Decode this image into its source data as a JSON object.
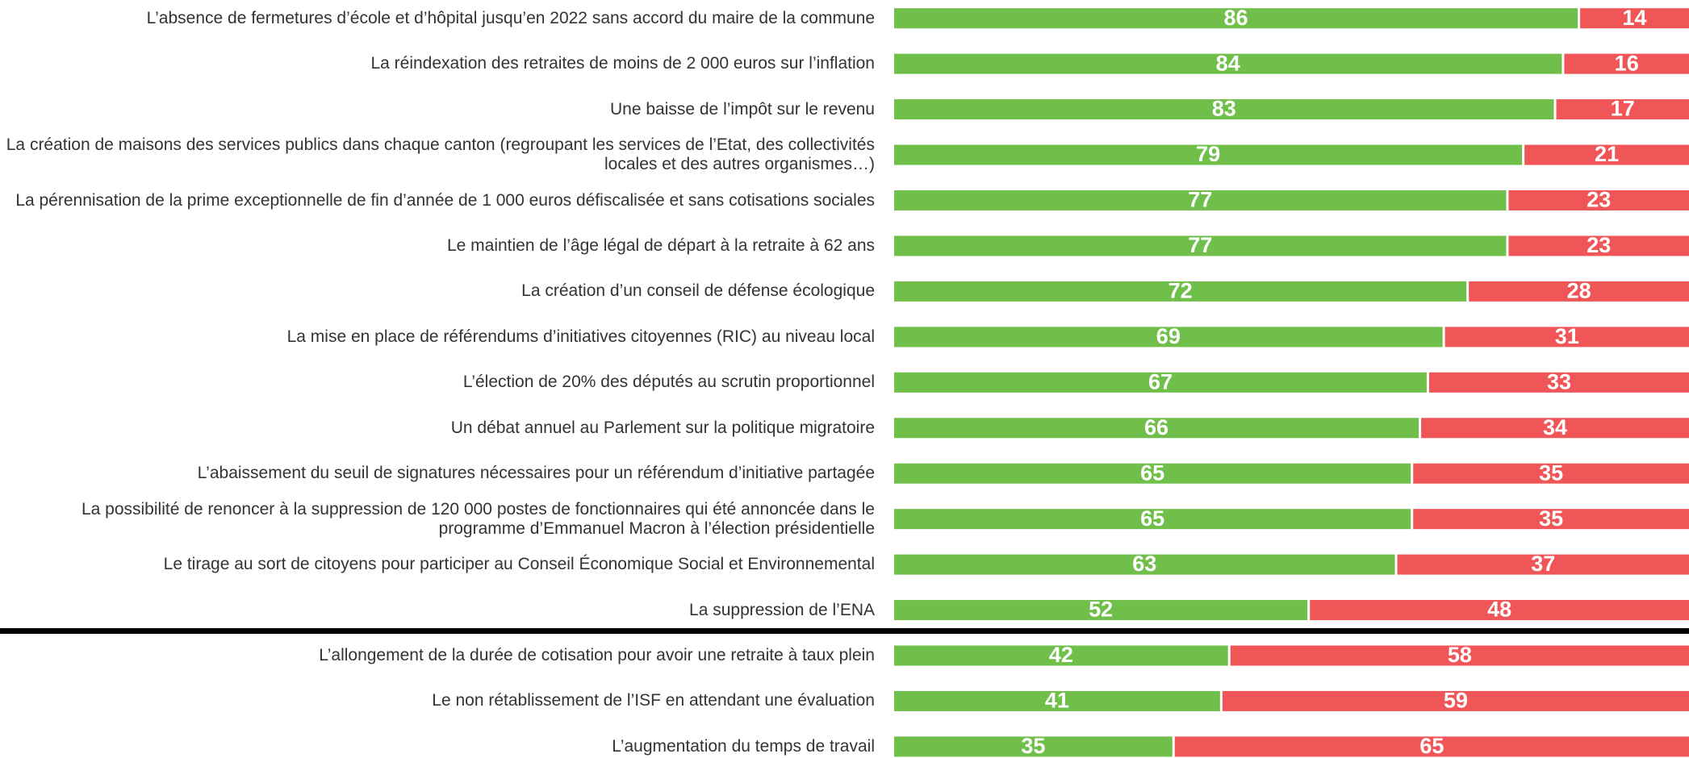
{
  "chart_data": {
    "type": "stacked-bar-horizontal",
    "categories": [
      "L’absence de fermetures d’école et d’hôpital jusqu’en 2022 sans accord du maire de la commune",
      "La réindexation des retraites de moins de 2 000 euros sur l’inflation",
      "Une baisse de l’impôt sur le revenu",
      "La création de maisons des services publics dans chaque canton (regroupant les services de l’Etat, des collectivités locales et des autres organismes…)",
      "La pérennisation de la prime exceptionnelle de fin d’année de 1 000 euros défiscalisée et sans cotisations sociales",
      "Le maintien de l’âge légal de départ à la retraite à 62 ans",
      "La création d’un conseil de défense écologique",
      "La mise en place de référendums d’initiatives citoyennes (RIC) au niveau local",
      "L’élection de 20% des députés au scrutin proportionnel",
      "Un débat annuel au Parlement sur la politique migratoire",
      "L’abaissement du seuil de signatures nécessaires pour un référendum d’initiative partagée",
      "La possibilité de renoncer à la suppression de 120 000 postes de fonctionnaires qui été annoncée dans le programme d’Emmanuel Macron à l’élection présidentielle",
      "Le tirage au sort de citoyens pour participer au Conseil Économique Social et Environnemental",
      "La suppression de l’ENA",
      "L’allongement de la durée de cotisation pour avoir une retraite à taux plein",
      "Le non rétablissement de l’ISF en attendant une évaluation",
      "L’augmentation du temps de travail"
    ],
    "series": [
      {
        "color": "#70bf4a",
        "values": [
          86,
          84,
          83,
          79,
          77,
          77,
          72,
          69,
          67,
          66,
          65,
          65,
          63,
          52,
          42,
          41,
          35
        ]
      },
      {
        "color": "#f05558",
        "values": [
          14,
          16,
          17,
          21,
          23,
          23,
          28,
          31,
          33,
          34,
          35,
          35,
          37,
          48,
          58,
          59,
          65
        ]
      }
    ],
    "xlim": [
      0,
      100
    ]
  }
}
